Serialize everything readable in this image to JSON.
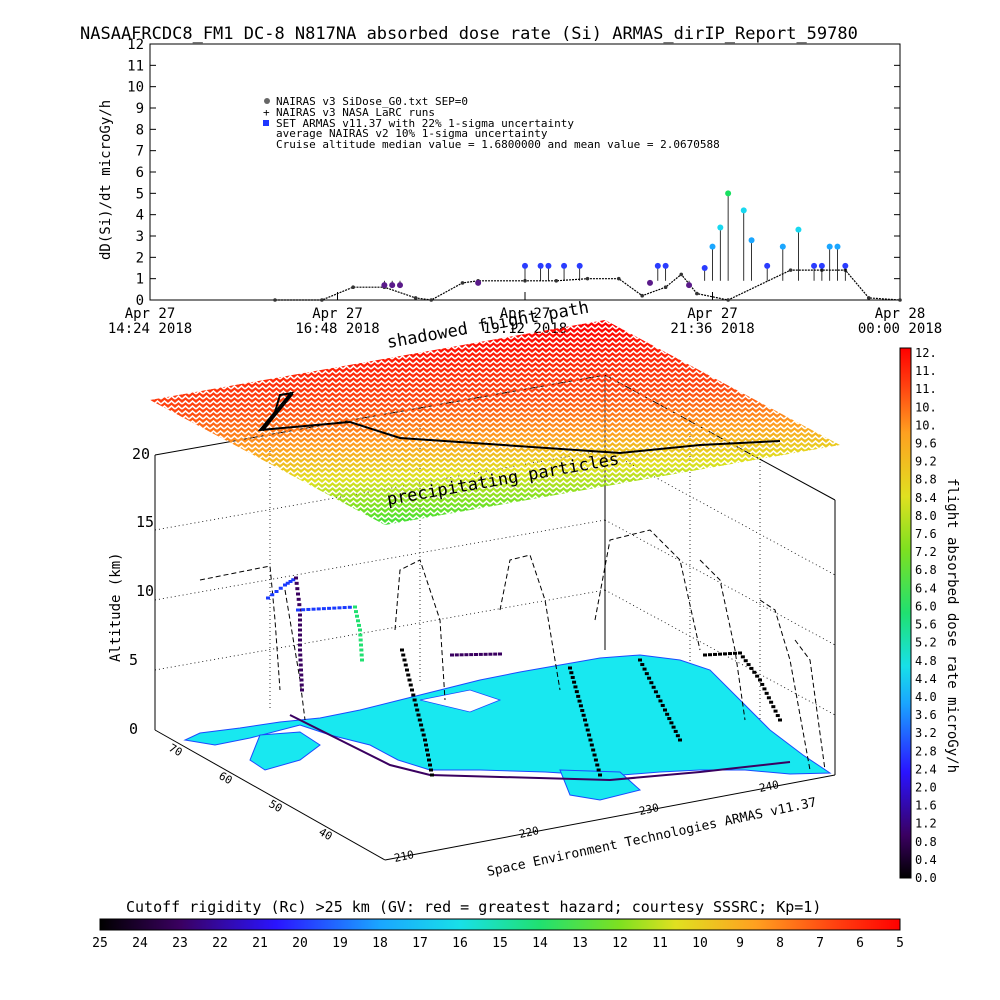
{
  "title": "NASAAFRCDC8_FM1 DC-8   N817NA absorbed dose rate (Si) ARMAS_dirIP_Report_59780",
  "top_chart": {
    "ylabel": "dD(Si)/dt microGy/h",
    "legend": [
      "NAIRAS v3 SiDose_G0.txt SEP=0",
      "NAIRAS v3 NASA LaRC runs",
      "SET ARMAS v11.37 with 22% 1-sigma uncertainty",
      "average NAIRAS v2 10% 1-sigma uncertainty",
      "Cruise altitude median value = 1.6800000 and mean value = 2.0670588"
    ],
    "xticks": [
      {
        "l1": "Apr 27",
        "l2": "14:24 2018"
      },
      {
        "l1": "Apr 27",
        "l2": "16:48 2018"
      },
      {
        "l1": "Apr 27",
        "l2": "19:12 2018"
      },
      {
        "l1": "Apr 27",
        "l2": "21:36 2018"
      },
      {
        "l1": "Apr 28",
        "l2": "00:00 2018"
      }
    ]
  },
  "chart_data": [
    {
      "type": "scatter",
      "title": "NASAAFRCDC8_FM1 DC-8   N817NA absorbed dose rate (Si) ARMAS_dirIP_Report_59780",
      "xlabel": "",
      "ylabel": "dD(Si)/dt microGy/h",
      "ylim": [
        0,
        12
      ],
      "yticks": [
        0,
        1,
        2,
        3,
        4,
        5,
        6,
        7,
        8,
        9,
        10,
        11,
        12
      ],
      "xlim_hours": [
        14.4,
        24.0
      ],
      "xtick_labels": [
        "Apr 27 14:24 2018",
        "Apr 27 16:48 2018",
        "Apr 27 19:12 2018",
        "Apr 27 21:36 2018",
        "Apr 28 00:00 2018"
      ],
      "series": [
        {
          "name": "NAIRAS v3 SiDose_G0.txt SEP=0",
          "x_hours": [
            16.0,
            16.6,
            17.0,
            17.4,
            17.8,
            18.0,
            18.4,
            18.6,
            19.2,
            19.6,
            20.0,
            20.4,
            20.7,
            21.0,
            21.2,
            21.4,
            21.8,
            22.6,
            23.0,
            23.3,
            23.6,
            24.0
          ],
          "values": [
            0,
            0,
            0.6,
            0.6,
            0.1,
            0,
            0.8,
            0.9,
            0.9,
            0.9,
            1.0,
            1.0,
            0.2,
            0.6,
            1.2,
            0.3,
            0,
            1.4,
            1.4,
            1.4,
            0.1,
            0
          ],
          "color": "#000000"
        },
        {
          "name": "SET ARMAS v11.37 with 22% 1-sigma uncertainty",
          "x_hours": [
            17.4,
            17.5,
            17.6,
            18.6,
            19.2,
            19.4,
            19.5,
            19.7,
            19.9,
            20.8,
            20.9,
            21.0,
            21.3,
            21.5,
            21.6,
            21.7,
            21.8,
            22.0,
            22.1,
            22.3,
            22.5,
            22.7,
            22.9,
            23.0,
            23.1,
            23.2,
            23.3
          ],
          "values": [
            0.7,
            0.7,
            0.7,
            0.8,
            1.6,
            1.6,
            1.6,
            1.6,
            1.6,
            0.8,
            1.6,
            1.6,
            0.7,
            1.5,
            2.5,
            3.4,
            5.0,
            4.2,
            2.8,
            1.6,
            2.5,
            3.3,
            1.6,
            1.6,
            2.5,
            2.5,
            1.6
          ],
          "color": "#2040ff"
        }
      ]
    },
    {
      "type": "scatter",
      "title": "",
      "xlabel": "",
      "ylabel": "Altitude (km)",
      "ylim": [
        0,
        20
      ],
      "zticks": [
        0,
        5,
        10,
        15,
        20
      ],
      "latitude_ticks": [
        70,
        60,
        50,
        40
      ],
      "longitude_ticks": [
        210,
        220,
        230,
        240
      ],
      "annotations": [
        "shadowed flight path",
        "precipitating particles",
        "Space Environment Technologies ARMAS v11.37"
      ],
      "series": [
        {
          "name": "DC-8 altitude profile",
          "values": [
            0,
            10,
            10,
            0,
            0,
            10,
            10,
            0,
            0,
            10,
            10,
            0,
            0,
            10,
            10,
            0
          ],
          "color": "#000000"
        }
      ]
    }
  ],
  "three_d": {
    "annot_path": "shadowed flight path",
    "annot_precip": "precipitating particles",
    "zlabel": "Altitude (km)",
    "zticks": [
      "0",
      "5",
      "10",
      "15",
      "20"
    ],
    "lat_ticks": [
      "70",
      "60",
      "50",
      "40"
    ],
    "lon_ticks": [
      "210",
      "220",
      "230",
      "240"
    ],
    "credit": "Space Environment Technologies ARMAS v11.37"
  },
  "right_colorbar": {
    "label": "flight absorbed dose rate microGy/h",
    "ticks": [
      "12.",
      "11.",
      "11.",
      "10.",
      "10.",
      "9.6",
      "9.2",
      "8.8",
      "8.4",
      "8.0",
      "7.6",
      "7.2",
      "6.8",
      "6.4",
      "6.0",
      "5.6",
      "5.2",
      "4.8",
      "4.4",
      "4.0",
      "3.6",
      "3.2",
      "2.8",
      "2.4",
      "2.0",
      "1.6",
      "1.2",
      "0.8",
      "0.4",
      "0.0"
    ]
  },
  "bottom_colorbar": {
    "label": "Cutoff rigidity (Rc) >25 km (GV: red = greatest hazard; courtesy SSSRC; Kp=1)",
    "ticks": [
      "25",
      "24",
      "23",
      "22",
      "21",
      "20",
      "19",
      "18",
      "17",
      "16",
      "15",
      "14",
      "13",
      "12",
      "11",
      "10",
      "9",
      "8",
      "7",
      "6",
      "5"
    ]
  }
}
